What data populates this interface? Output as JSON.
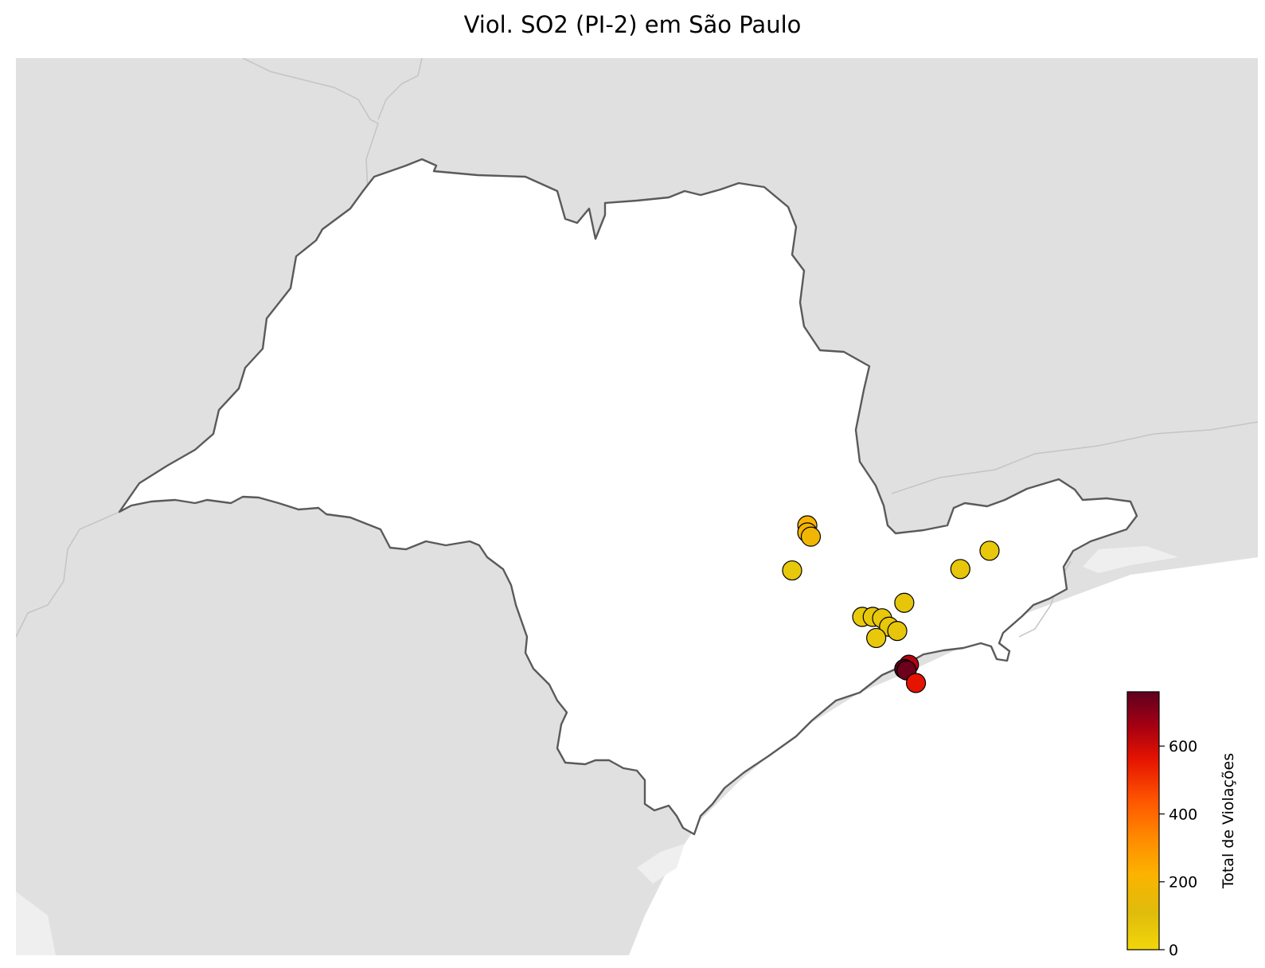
{
  "title": "Viol. SO2 (PI-2) em São Paulo",
  "colors": {
    "land_outside": "#e0e0e0",
    "ocean": "#ffffff",
    "state_fill": "#ffffff",
    "state_border": "#5a5a5a",
    "neighbor_border": "#c4c4c4",
    "marker_edge": "#000000"
  },
  "colorbar": {
    "label": "Total de Violações",
    "ticks": [
      "0",
      "200",
      "400",
      "600"
    ],
    "tick_values": [
      0,
      200,
      400,
      600
    ],
    "min": 0,
    "max": 760,
    "stops": [
      {
        "v": 0,
        "c": "#f2d60a"
      },
      {
        "v": 110,
        "c": "#dfbc0c"
      },
      {
        "v": 220,
        "c": "#fbb300"
      },
      {
        "v": 330,
        "c": "#ff8a00"
      },
      {
        "v": 440,
        "c": "#ff5500"
      },
      {
        "v": 560,
        "c": "#e51400"
      },
      {
        "v": 660,
        "c": "#a50012"
      },
      {
        "v": 760,
        "c": "#5e0020"
      }
    ]
  },
  "chart_data": {
    "type": "scatter",
    "title": "Viol. SO2 (PI-2) em São Paulo",
    "color_variable": "Total de Violações",
    "points": [
      {
        "lon": -47.43,
        "lat": -22.58,
        "value": 210
      },
      {
        "lon": -47.43,
        "lat": -22.63,
        "value": 190
      },
      {
        "lon": -47.4,
        "lat": -22.66,
        "value": 180
      },
      {
        "lon": -47.56,
        "lat": -22.9,
        "value": 60
      },
      {
        "lon": -46.12,
        "lat": -22.89,
        "value": 70
      },
      {
        "lon": -45.87,
        "lat": -22.76,
        "value": 60
      },
      {
        "lon": -46.6,
        "lat": -23.13,
        "value": 70
      },
      {
        "lon": -46.96,
        "lat": -23.23,
        "value": 50
      },
      {
        "lon": -46.87,
        "lat": -23.23,
        "value": 60
      },
      {
        "lon": -46.79,
        "lat": -23.24,
        "value": 60
      },
      {
        "lon": -46.73,
        "lat": -23.3,
        "value": 60
      },
      {
        "lon": -46.66,
        "lat": -23.33,
        "value": 70
      },
      {
        "lon": -46.84,
        "lat": -23.38,
        "value": 60
      },
      {
        "lon": -46.56,
        "lat": -23.57,
        "value": 640
      },
      {
        "lon": -46.6,
        "lat": -23.6,
        "value": 760
      },
      {
        "lon": -46.58,
        "lat": -23.61,
        "value": 740
      },
      {
        "lon": -46.5,
        "lat": -23.7,
        "value": 560
      }
    ]
  }
}
